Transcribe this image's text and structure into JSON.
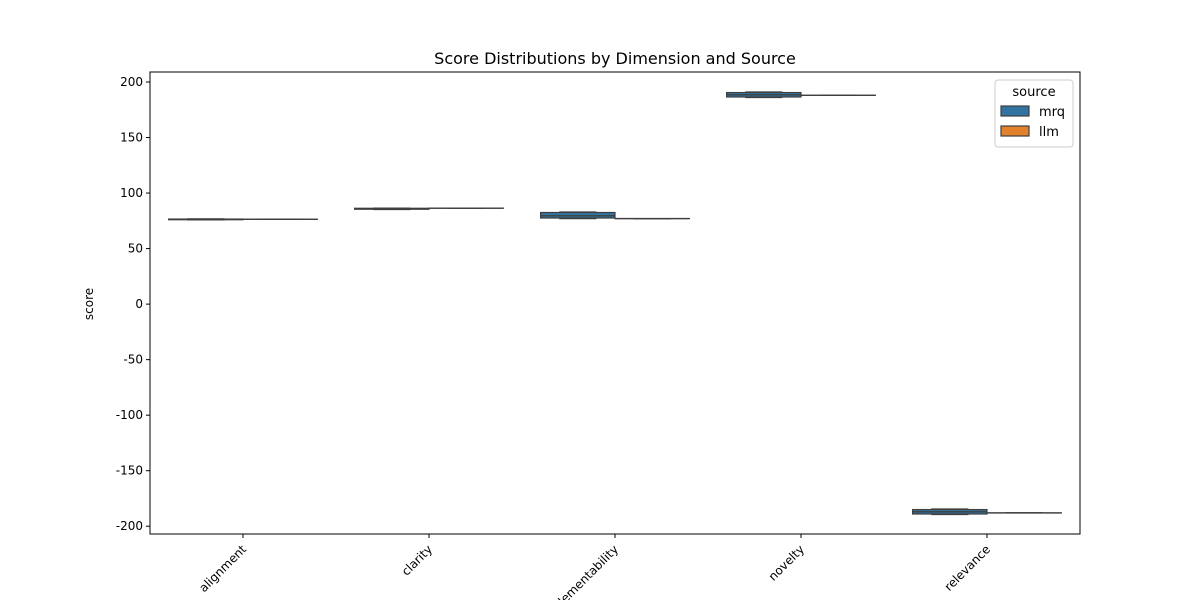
{
  "chart_data": {
    "type": "box",
    "title": "Score Distributions by Dimension and Source",
    "xlabel": "",
    "ylabel": "score",
    "ylim": [
      -207,
      209
    ],
    "yticks": [
      200,
      150,
      100,
      50,
      0,
      -50,
      -100,
      -150,
      -200
    ],
    "categories": [
      "alignment",
      "clarity",
      "implementability",
      "novelty",
      "relevance"
    ],
    "legend": {
      "title": "source",
      "placement": "top-right"
    },
    "series": [
      {
        "name": "mrq",
        "color": "#3274a1",
        "boxes": [
          {
            "q1": 76.0,
            "median": 76.3,
            "q3": 76.6,
            "whisker_low": 75.8,
            "whisker_high": 76.8
          },
          {
            "q1": 85.4,
            "median": 85.8,
            "q3": 86.3,
            "whisker_low": 85.2,
            "whisker_high": 86.5
          },
          {
            "q1": 77.5,
            "median": 79.5,
            "q3": 82.5,
            "whisker_low": 77.0,
            "whisker_high": 83.0
          },
          {
            "q1": 186.5,
            "median": 188.5,
            "q3": 190.5,
            "whisker_low": 186.0,
            "whisker_high": 191.0
          },
          {
            "q1": -189.0,
            "median": -187.0,
            "q3": -185.0,
            "whisker_low": -189.5,
            "whisker_high": -184.5
          }
        ]
      },
      {
        "name": "llm",
        "color": "#e1812c",
        "boxes": [
          {
            "q1": 76.4,
            "median": 76.4,
            "q3": 76.4,
            "whisker_low": 76.4,
            "whisker_high": 76.4
          },
          {
            "q1": 86.4,
            "median": 86.4,
            "q3": 86.4,
            "whisker_low": 86.4,
            "whisker_high": 86.4
          },
          {
            "q1": 77.0,
            "median": 77.0,
            "q3": 77.0,
            "whisker_low": 77.0,
            "whisker_high": 77.0
          },
          {
            "q1": 188.0,
            "median": 188.0,
            "q3": 188.0,
            "whisker_low": 188.0,
            "whisker_high": 188.0
          },
          {
            "q1": -188.0,
            "median": -188.0,
            "q3": -188.0,
            "whisker_low": -188.0,
            "whisker_high": -188.0
          }
        ]
      }
    ]
  }
}
